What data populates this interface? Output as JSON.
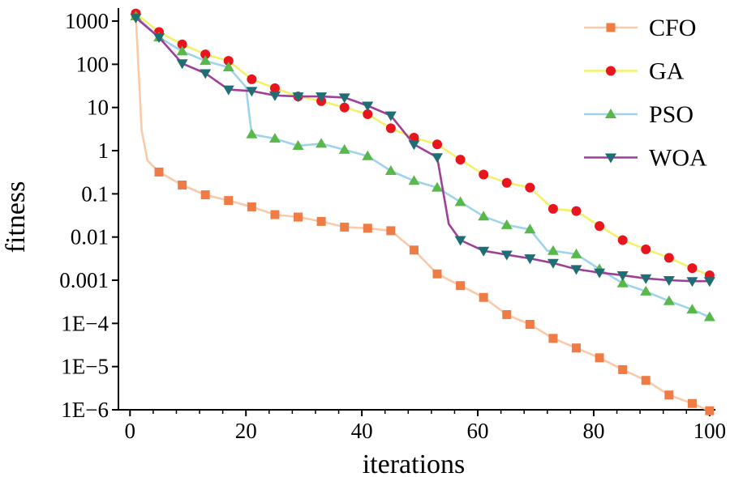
{
  "chart_data": {
    "type": "line",
    "xlabel": "iterations",
    "ylabel": "fitness",
    "xlim": [
      -2,
      101
    ],
    "ylim": [
      1e-06,
      2000
    ],
    "yscale": "log",
    "xticks": [
      0,
      20,
      40,
      60,
      80,
      100
    ],
    "yticks": [
      {
        "value": 1000,
        "label": "1000"
      },
      {
        "value": 100,
        "label": "100"
      },
      {
        "value": 10,
        "label": "10"
      },
      {
        "value": 1,
        "label": "1"
      },
      {
        "value": 0.1,
        "label": "0.1"
      },
      {
        "value": 0.01,
        "label": "0.01"
      },
      {
        "value": 0.001,
        "label": "0.001"
      },
      {
        "value": 0.0001,
        "label": "1E−4"
      },
      {
        "value": 1e-05,
        "label": "1E−5"
      },
      {
        "value": 1e-06,
        "label": "1E−6"
      }
    ],
    "legend_position": "top-right",
    "series": [
      {
        "name": "CFO",
        "color": "#f07c45",
        "line_color": "#f9c9a8",
        "marker": "square",
        "x": [
          1,
          2,
          3,
          5,
          9,
          13,
          17,
          21,
          25,
          29,
          33,
          37,
          41,
          45,
          49,
          53,
          57,
          61,
          65,
          69,
          73,
          77,
          81,
          85,
          89,
          93,
          97,
          100
        ],
        "y": [
          1400,
          3,
          0.6,
          0.32,
          0.16,
          0.095,
          0.07,
          0.05,
          0.033,
          0.029,
          0.023,
          0.017,
          0.016,
          0.014,
          0.005,
          0.0014,
          0.00075,
          0.0004,
          0.00016,
          9.5e-05,
          4.5e-05,
          2.7e-05,
          1.6e-05,
          8.5e-06,
          4.8e-06,
          2.2e-06,
          1.4e-06,
          9.5e-07
        ]
      },
      {
        "name": "GA",
        "color": "#e8141e",
        "line_color": "#f3f06a",
        "marker": "circle",
        "x": [
          1,
          5,
          9,
          13,
          17,
          21,
          25,
          29,
          33,
          37,
          41,
          45,
          49,
          53,
          57,
          61,
          65,
          69,
          73,
          77,
          81,
          85,
          89,
          93,
          97,
          100
        ],
        "y": [
          1500,
          560,
          290,
          170,
          120,
          45,
          28,
          18,
          14,
          10,
          7,
          3.3,
          2,
          1.4,
          0.62,
          0.28,
          0.18,
          0.14,
          0.045,
          0.04,
          0.018,
          0.0085,
          0.0052,
          0.0033,
          0.0019,
          0.0013
        ]
      },
      {
        "name": "PSO",
        "color": "#58b84a",
        "line_color": "#9fd3ec",
        "marker": "triangle-up",
        "x": [
          1,
          5,
          9,
          13,
          17,
          20,
          21,
          25,
          29,
          33,
          37,
          41,
          45,
          49,
          53,
          57,
          61,
          65,
          69,
          72,
          73,
          77,
          81,
          85,
          89,
          93,
          97,
          100
        ],
        "y": [
          1300,
          420,
          200,
          120,
          85,
          30,
          2.4,
          1.9,
          1.3,
          1.45,
          1.05,
          0.75,
          0.34,
          0.2,
          0.14,
          0.065,
          0.03,
          0.019,
          0.015,
          0.0048,
          0.0048,
          0.004,
          0.0018,
          0.00085,
          0.00055,
          0.00033,
          0.00021,
          0.00014
        ]
      },
      {
        "name": "WOA",
        "color": "#1e6e73",
        "line_color": "#9e3f9a",
        "marker": "triangle-down",
        "x": [
          1,
          5,
          9,
          13,
          17,
          21,
          25,
          29,
          33,
          37,
          41,
          45,
          49,
          53,
          55,
          57,
          61,
          65,
          69,
          73,
          77,
          81,
          85,
          89,
          93,
          97,
          100
        ],
        "y": [
          1200,
          420,
          105,
          62,
          26,
          24,
          19,
          18,
          18,
          17,
          11,
          6.5,
          1.4,
          0.7,
          0.02,
          0.0085,
          0.0048,
          0.0039,
          0.0032,
          0.0025,
          0.0018,
          0.0015,
          0.0013,
          0.0011,
          0.001,
          0.00095,
          0.00095
        ]
      }
    ]
  }
}
